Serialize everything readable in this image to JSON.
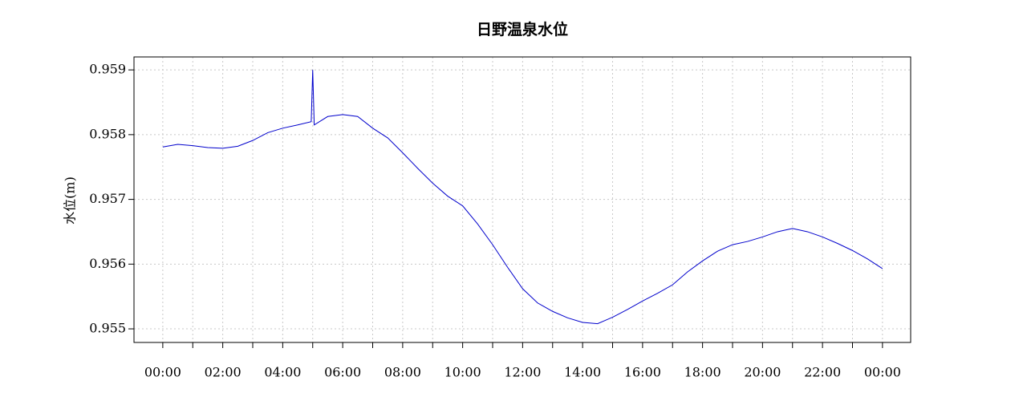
{
  "chart_data": {
    "type": "line",
    "title": "日野温泉水位",
    "y_label": "水位(m)",
    "x": [
      0,
      0.5,
      1,
      1.5,
      2,
      2.5,
      3,
      3.5,
      4,
      4.5,
      4.95,
      5.0,
      5.05,
      5.5,
      6,
      6.5,
      7,
      7.5,
      8,
      8.5,
      9,
      9.5,
      10,
      10.5,
      11,
      11.5,
      12,
      12.5,
      13,
      13.5,
      14,
      14.5,
      15,
      15.5,
      16,
      16.5,
      17,
      17.5,
      18,
      18.5,
      19,
      19.5,
      20,
      20.5,
      21,
      21.5,
      22,
      22.5,
      23,
      23.5,
      24
    ],
    "series": [
      {
        "name": "水位",
        "color": "#0000cc",
        "values": [
          0.95781,
          0.95785,
          0.95783,
          0.9578,
          0.95779,
          0.95782,
          0.95791,
          0.95803,
          0.9581,
          0.95815,
          0.9582,
          0.959,
          0.95815,
          0.95828,
          0.95831,
          0.95828,
          0.9581,
          0.95795,
          0.95772,
          0.95748,
          0.95725,
          0.95705,
          0.9569,
          0.95662,
          0.9563,
          0.95595,
          0.95562,
          0.9554,
          0.95527,
          0.95517,
          0.9551,
          0.95508,
          0.95518,
          0.9553,
          0.95543,
          0.95555,
          0.95568,
          0.95588,
          0.95605,
          0.9562,
          0.9563,
          0.95635,
          0.95642,
          0.9565,
          0.95655,
          0.9565,
          0.95642,
          0.95632,
          0.95621,
          0.95608,
          0.95593
        ]
      }
    ],
    "xlim": [
      -0.96,
      24.94
    ],
    "ylim": [
      0.95479,
      0.9592
    ],
    "xticks": [
      {
        "value": 0,
        "label": "00:00"
      },
      {
        "value": 2,
        "label": "02:00"
      },
      {
        "value": 4,
        "label": "04:00"
      },
      {
        "value": 6,
        "label": "06:00"
      },
      {
        "value": 8,
        "label": "08:00"
      },
      {
        "value": 10,
        "label": "10:00"
      },
      {
        "value": 12,
        "label": "12:00"
      },
      {
        "value": 14,
        "label": "14:00"
      },
      {
        "value": 16,
        "label": "16:00"
      },
      {
        "value": 18,
        "label": "18:00"
      },
      {
        "value": 20,
        "label": "20:00"
      },
      {
        "value": 22,
        "label": "22:00"
      },
      {
        "value": 24,
        "label": "00:00"
      }
    ],
    "xminorticks": [
      1,
      3,
      5,
      7,
      9,
      11,
      13,
      15,
      17,
      19,
      21,
      23
    ],
    "yticks": [
      0.955,
      0.956,
      0.957,
      0.958,
      0.959
    ],
    "grid": true
  }
}
